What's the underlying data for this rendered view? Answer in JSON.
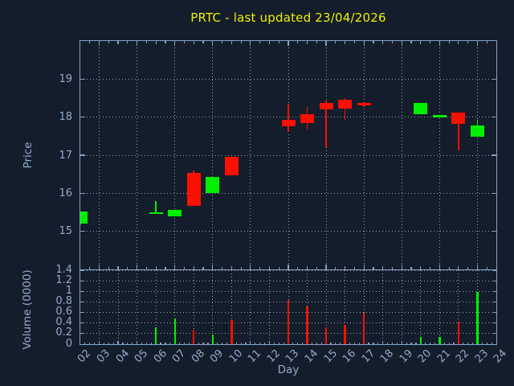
{
  "chart_data": {
    "type": "candlestick",
    "title": "PRTC - last updated 23/04/2026",
    "xlabel": "Day",
    "xlim": [
      2,
      24
    ],
    "x_ticklabels": [
      "02",
      "03",
      "04",
      "05",
      "06",
      "07",
      "08",
      "09",
      "10",
      "11",
      "12",
      "13",
      "14",
      "15",
      "16",
      "17",
      "18",
      "19",
      "20",
      "21",
      "22",
      "23",
      "24"
    ],
    "price_panel": {
      "ylabel": "Price",
      "ylim": [
        14,
        20
      ],
      "yticks": [
        "15",
        "16",
        "17",
        "18",
        "19"
      ],
      "grid": "dotted",
      "grid_x_days": [
        3,
        5,
        7,
        9,
        11,
        13,
        15,
        17,
        19,
        21,
        23
      ]
    },
    "volume_panel": {
      "ylabel": "Volume (0000)",
      "ylim": [
        0,
        1.4
      ],
      "yticks": [
        "0",
        "0.2",
        "0.4",
        "0.6",
        "0.8",
        "1",
        "1.2",
        "1.4"
      ],
      "grid": "dotted",
      "grid_x_days": [
        3,
        4,
        5,
        6,
        7,
        8,
        9,
        10,
        11,
        12,
        13,
        14,
        15,
        16,
        17,
        18,
        19,
        20,
        21,
        22,
        23
      ]
    },
    "legend_position": "none",
    "series": [
      {
        "day": 2,
        "label": "02",
        "open": 15.2,
        "high": 15.53,
        "low": 15.18,
        "close": 15.53,
        "volume": 0.0
      },
      {
        "day": 6,
        "label": "06",
        "open": 15.47,
        "high": 15.8,
        "low": 15.45,
        "close": 15.5,
        "volume": 0.32
      },
      {
        "day": 7,
        "label": "07",
        "open": 15.39,
        "high": 15.56,
        "low": 15.39,
        "close": 15.56,
        "volume": 0.48
      },
      {
        "day": 8,
        "label": "08",
        "open": 16.54,
        "high": 16.6,
        "low": 15.67,
        "close": 15.67,
        "volume": 0.28
      },
      {
        "day": 9,
        "label": "09",
        "open": 16.01,
        "high": 16.44,
        "low": 16.01,
        "close": 16.44,
        "volume": 0.18
      },
      {
        "day": 10,
        "label": "10",
        "open": 16.96,
        "high": 16.96,
        "low": 16.48,
        "close": 16.48,
        "volume": 0.46
      },
      {
        "day": 13,
        "label": "13",
        "open": 17.94,
        "high": 18.35,
        "low": 17.61,
        "close": 17.77,
        "volume": 0.84
      },
      {
        "day": 14,
        "label": "14",
        "open": 18.07,
        "high": 18.26,
        "low": 17.68,
        "close": 17.84,
        "volume": 0.72
      },
      {
        "day": 15,
        "label": "15",
        "open": 18.37,
        "high": 18.44,
        "low": 17.22,
        "close": 18.2,
        "volume": 0.32
      },
      {
        "day": 16,
        "label": "16",
        "open": 18.45,
        "high": 18.49,
        "low": 17.92,
        "close": 18.23,
        "volume": 0.37
      },
      {
        "day": 17,
        "label": "17",
        "open": 18.38,
        "high": 18.4,
        "low": 18.27,
        "close": 18.3,
        "volume": 0.6
      },
      {
        "day": 20,
        "label": "20",
        "open": 18.08,
        "high": 18.37,
        "low": 18.08,
        "close": 18.37,
        "volume": 0.13
      },
      {
        "day": 21,
        "label": "21",
        "open": 18.0,
        "high": 18.06,
        "low": 18.0,
        "close": 18.06,
        "volume": 0.14
      },
      {
        "day": 22,
        "label": "22",
        "open": 18.13,
        "high": 18.13,
        "low": 17.12,
        "close": 17.82,
        "volume": 0.42
      },
      {
        "day": 23,
        "label": "23",
        "open": 17.49,
        "high": 17.92,
        "low": 17.49,
        "close": 17.79,
        "volume": 0.99
      }
    ],
    "colors": {
      "up": "#00f000",
      "down": "#fa1000",
      "background": "#131d2b",
      "axis": "#86a3c6",
      "tick_labels": "#94abce",
      "grid": "#bec6d0",
      "title": "#f0f000"
    }
  }
}
